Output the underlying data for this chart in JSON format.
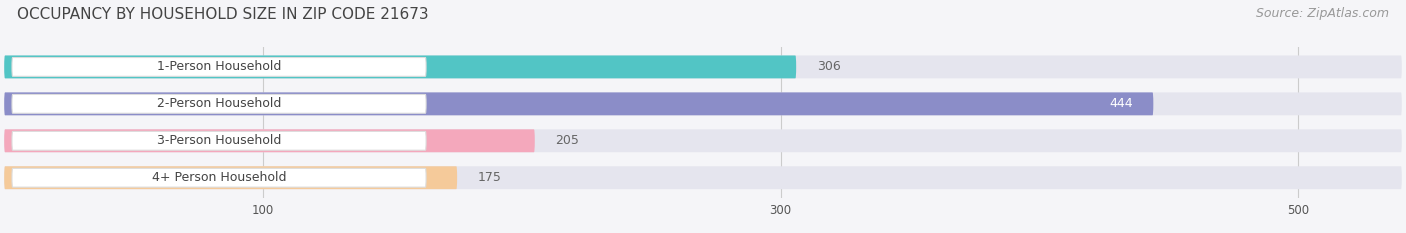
{
  "title": "OCCUPANCY BY HOUSEHOLD SIZE IN ZIP CODE 21673",
  "source": "Source: ZipAtlas.com",
  "categories": [
    "1-Person Household",
    "2-Person Household",
    "3-Person Household",
    "4+ Person Household"
  ],
  "values": [
    306,
    444,
    205,
    175
  ],
  "bar_colors": [
    "#52C5C5",
    "#8B8DC8",
    "#F4A8BC",
    "#F5CA9A"
  ],
  "bar_bg_color": "#E5E5EE",
  "label_bg_color": "#FFFFFF",
  "xlim": [
    0,
    540
  ],
  "xticks": [
    100,
    300,
    500
  ],
  "value_label_color_inside": "#FFFFFF",
  "value_label_color_outside": "#666666",
  "title_fontsize": 11,
  "source_fontsize": 9,
  "bar_label_fontsize": 9,
  "value_fontsize": 9,
  "background_color": "#F5F5F8"
}
